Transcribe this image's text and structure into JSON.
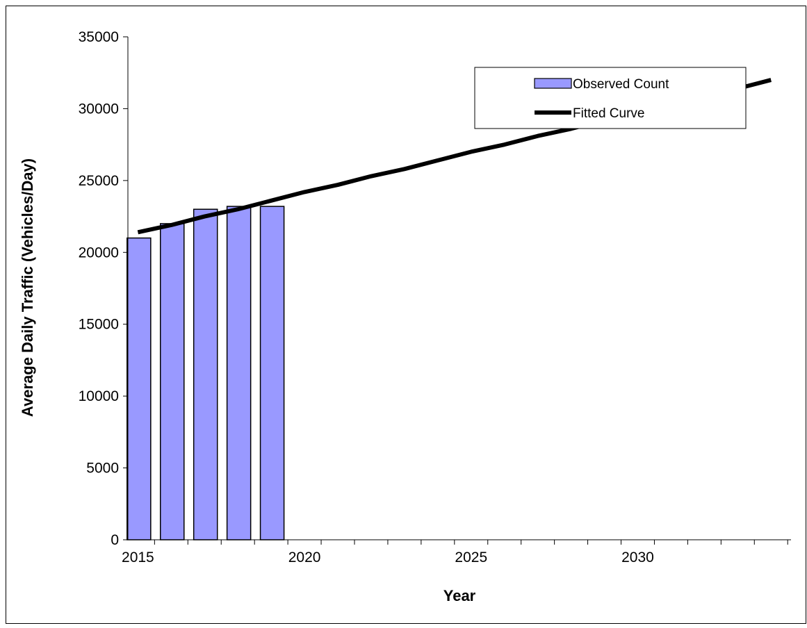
{
  "chart_data": {
    "type": "bar",
    "xlabel": "Year",
    "ylabel": "Average Daily Traffic (Vehicles/Day)",
    "xlim": [
      2014.7,
      2034.6
    ],
    "ylim": [
      0,
      35000
    ],
    "x_ticks": [
      2015,
      2020,
      2025,
      2030
    ],
    "y_ticks": [
      0,
      5000,
      10000,
      15000,
      20000,
      25000,
      30000,
      35000
    ],
    "grid": false,
    "legend_position": "top-right",
    "series": [
      {
        "name": "Observed Count",
        "type": "bar",
        "color": "#9999FF",
        "x": [
          2015,
          2016,
          2017,
          2018,
          2019
        ],
        "values": [
          21000,
          22000,
          23000,
          23200,
          23200
        ]
      },
      {
        "name": "Fitted Curve",
        "type": "line",
        "color": "#000000",
        "x": [
          2015,
          2016,
          2017,
          2018,
          2019,
          2020,
          2021,
          2022,
          2023,
          2024,
          2025,
          2026,
          2027,
          2028,
          2029,
          2030,
          2031,
          2032,
          2033,
          2034
        ],
        "values": [
          21400,
          21900,
          22500,
          23000,
          23600,
          24200,
          24700,
          25300,
          25800,
          26400,
          27000,
          27500,
          28100,
          28600,
          29200,
          29800,
          30300,
          30900,
          31400,
          32000
        ]
      }
    ]
  }
}
